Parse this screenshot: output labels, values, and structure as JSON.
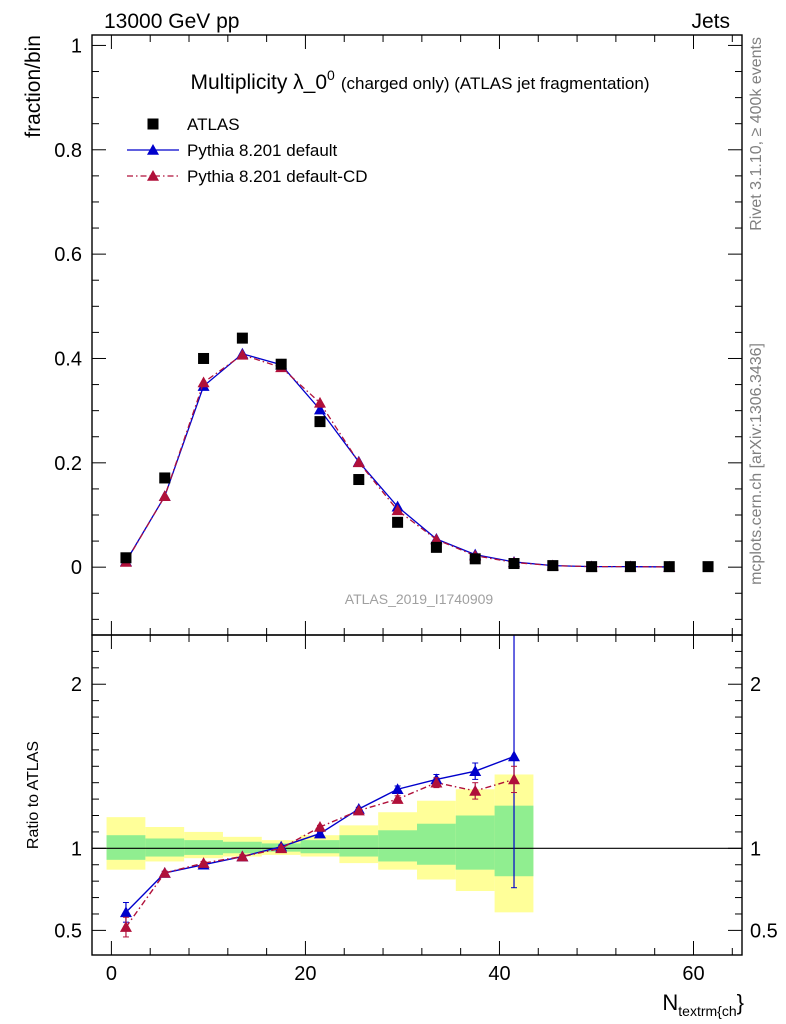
{
  "header": {
    "left": "13000 GeV pp",
    "right": "Jets"
  },
  "side": {
    "top": "Rivet 3.1.10, ≥ 400k events",
    "bottom": "mcplots.cern.ch [arXiv:1306.3436]"
  },
  "watermark": "ATLAS_2019_I1740909",
  "chart_data": [
    {
      "type": "scatter",
      "title": "Multiplicity λ_0",
      "title_sup": "0",
      "title_suffix": "(charged only) (ATLAS jet fragmentation)",
      "ylabel": "fraction/bin",
      "xlim": [
        -2,
        65
      ],
      "ylim": [
        -0.13,
        1.02
      ],
      "yticks": [
        0,
        0.2,
        0.4,
        0.6,
        0.8,
        1
      ],
      "ytick_labels": [
        "0",
        "0.2",
        "0.4",
        "0.6",
        "0.8",
        "1"
      ],
      "legend_position": "top-left",
      "series": [
        {
          "name": "ATLAS",
          "color": "#000000",
          "marker": "square",
          "x": [
            1.5,
            5.5,
            9.5,
            13.5,
            17.5,
            21.5,
            25.5,
            29.5,
            33.5,
            37.5,
            41.5,
            45.5,
            49.5,
            53.5,
            57.5,
            61.5
          ],
          "y": [
            0.018,
            0.171,
            0.4,
            0.439,
            0.389,
            0.279,
            0.168,
            0.086,
            0.038,
            0.016,
            0.007,
            0.003,
            0.001,
            0.001,
            0.001,
            0.001
          ]
        },
        {
          "name": "Pythia 8.201 default",
          "color": "#0000cc",
          "marker": "triangle",
          "line": "solid",
          "x": [
            1.5,
            5.5,
            9.5,
            13.5,
            17.5,
            21.5,
            25.5,
            29.5,
            33.5,
            37.5,
            41.5,
            45.5,
            49.5,
            53.5,
            57.5
          ],
          "y": [
            0.011,
            0.136,
            0.347,
            0.409,
            0.388,
            0.302,
            0.202,
            0.116,
            0.054,
            0.024,
            0.01,
            0.003,
            0.001,
            0.001,
            0.0005
          ]
        },
        {
          "name": "Pythia 8.201 default-CD",
          "color": "#b0103a",
          "marker": "triangle",
          "line": "dashdot",
          "x": [
            1.5,
            5.5,
            9.5,
            13.5,
            17.5,
            21.5,
            25.5,
            29.5,
            33.5,
            37.5,
            41.5,
            45.5,
            49.5,
            53.5,
            57.5
          ],
          "y": [
            0.01,
            0.136,
            0.354,
            0.407,
            0.383,
            0.315,
            0.201,
            0.109,
            0.053,
            0.022,
            0.009,
            0.003,
            0.001,
            0.001,
            0.0005
          ]
        }
      ]
    },
    {
      "type": "line",
      "ylabel": "Ratio to ATLAS",
      "xlabel": "N",
      "xlabel_sub": "textrm{ch",
      "xlabel_suffix": "}",
      "xlim": [
        -2,
        65
      ],
      "ylim": [
        0.35,
        2.3
      ],
      "xticks": [
        0,
        20,
        40,
        60
      ],
      "xtick_labels": [
        "0",
        "20",
        "40",
        "60"
      ],
      "yticks": [
        0.5,
        1,
        2
      ],
      "ytick_labels": [
        "0.5",
        "1",
        "2"
      ],
      "reference": 1,
      "bands": {
        "edges": [
          -0.5,
          3.5,
          7.5,
          11.5,
          15.5,
          19.5,
          23.5,
          27.5,
          31.5,
          35.5,
          39.5,
          43.5
        ],
        "inner_color": "#90ee90",
        "inner_lo": [
          0.93,
          0.95,
          0.96,
          0.97,
          0.98,
          0.97,
          0.95,
          0.92,
          0.9,
          0.87,
          0.83
        ],
        "inner_hi": [
          1.08,
          1.06,
          1.05,
          1.04,
          1.03,
          1.05,
          1.08,
          1.11,
          1.15,
          1.2,
          1.26
        ],
        "outer_color": "#ffff99",
        "outer_lo": [
          0.87,
          0.92,
          0.94,
          0.95,
          0.96,
          0.95,
          0.91,
          0.87,
          0.81,
          0.74,
          0.61
        ],
        "outer_hi": [
          1.19,
          1.13,
          1.1,
          1.07,
          1.05,
          1.08,
          1.14,
          1.22,
          1.29,
          1.36,
          1.45
        ]
      },
      "series": [
        {
          "name": "Pythia 8.201 default",
          "color": "#0000cc",
          "line": "solid",
          "x": [
            1.5,
            5.5,
            9.5,
            13.5,
            17.5,
            21.5,
            25.5,
            29.5,
            33.5,
            37.5,
            41.5
          ],
          "y": [
            0.61,
            0.85,
            0.9,
            0.95,
            1.01,
            1.09,
            1.24,
            1.36,
            1.42,
            1.47,
            1.56
          ],
          "err": [
            0.06,
            0.01,
            0.01,
            0.01,
            0.01,
            0.01,
            0.01,
            0.02,
            0.03,
            0.05,
            0.8
          ]
        },
        {
          "name": "Pythia 8.201 default-CD",
          "color": "#b0103a",
          "line": "dashdot",
          "x": [
            1.5,
            5.5,
            9.5,
            13.5,
            17.5,
            21.5,
            25.5,
            29.5,
            33.5,
            37.5,
            41.5
          ],
          "y": [
            0.52,
            0.85,
            0.91,
            0.95,
            1.0,
            1.13,
            1.23,
            1.3,
            1.4,
            1.35,
            1.42
          ],
          "err": [
            0.06,
            0.01,
            0.01,
            0.01,
            0.01,
            0.01,
            0.01,
            0.02,
            0.03,
            0.05,
            0.08
          ]
        }
      ]
    }
  ]
}
